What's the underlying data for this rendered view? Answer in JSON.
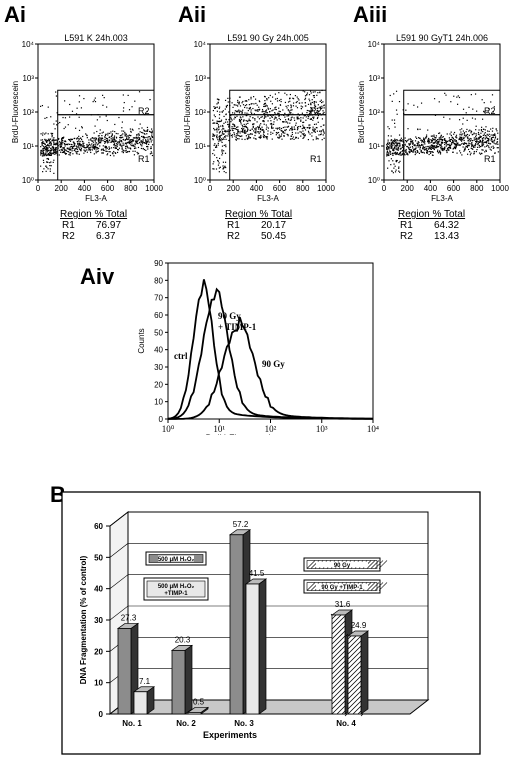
{
  "panels": {
    "Ai": {
      "label": "Ai",
      "title": "L591 K 24h.003"
    },
    "Aii": {
      "label": "Aii",
      "title": "L591 90 Gy 24h.005"
    },
    "Aiii": {
      "label": "Aiii",
      "title": "L591 90 GyT1 24h.006"
    },
    "Aiv": {
      "label": "Aiv"
    },
    "B": {
      "label": "B"
    }
  },
  "scatter_axes": {
    "xlabel": "FL3-A",
    "ylabel": "BrdU-Fluorescein",
    "x_ticks": [
      "0",
      "200",
      "400",
      "600",
      "800",
      "1000"
    ],
    "y_ticks": [
      "10⁰",
      "10¹",
      "10²",
      "10³",
      "10⁴"
    ],
    "gate_labels": [
      "R1",
      "R2"
    ]
  },
  "region_tables": {
    "header": "Region % Total",
    "Ai": [
      {
        "region": "R1",
        "value": "76.97"
      },
      {
        "region": "R2",
        "value": "6.37"
      }
    ],
    "Aii": [
      {
        "region": "R1",
        "value": "20.17"
      },
      {
        "region": "R2",
        "value": "50.45"
      }
    ],
    "Aiii": [
      {
        "region": "R1",
        "value": "64.32"
      },
      {
        "region": "R2",
        "value": "13.43"
      }
    ]
  },
  "histogram": {
    "xlabel": "BrdU-Fluorescein",
    "ylabel": "Counts",
    "y_ticks": [
      "0",
      "10",
      "20",
      "30",
      "40",
      "50",
      "60",
      "70",
      "80",
      "90"
    ],
    "x_ticks": [
      "10⁰",
      "10¹",
      "10²",
      "10³",
      "10⁴"
    ],
    "curve_labels": {
      "ctrl": "ctrl",
      "timp": "90 Gy\n+ TIMP-1",
      "gy90": "90 Gy"
    }
  },
  "chart_data": {
    "type": "bar",
    "xlabel": "Experiments",
    "ylabel": "DNA Fragmentation (% of control)",
    "ylim": [
      0,
      60
    ],
    "y_ticks": [
      "0",
      "10",
      "20",
      "30",
      "40",
      "50",
      "60"
    ],
    "categories": [
      "No. 1",
      "No. 2",
      "No. 3",
      "No. 4"
    ],
    "series": [
      {
        "name": "500 μM H₂O₂",
        "values": [
          27.3,
          20.3,
          57.2,
          null
        ]
      },
      {
        "name": "500 μM H₂O₂ +TIMP-1",
        "values": [
          7.1,
          0.5,
          41.5,
          null
        ]
      },
      {
        "name": "90 Gy",
        "values": [
          null,
          null,
          null,
          31.6
        ]
      },
      {
        "name": "90 Gy +TIMP-1",
        "values": [
          null,
          null,
          null,
          24.9
        ]
      }
    ],
    "data_labels": [
      [
        "27.3",
        "20.3",
        "57.2",
        ""
      ],
      [
        "7.1",
        "0.5",
        "41.5",
        ""
      ],
      [
        "",
        "",
        "",
        "31.6"
      ],
      [
        "",
        "",
        "",
        "24.9"
      ]
    ],
    "grid": true,
    "colors": {
      "solid": "#8c8c8c",
      "light": "#e8e8e8",
      "floor": "#c8c8c8"
    }
  }
}
